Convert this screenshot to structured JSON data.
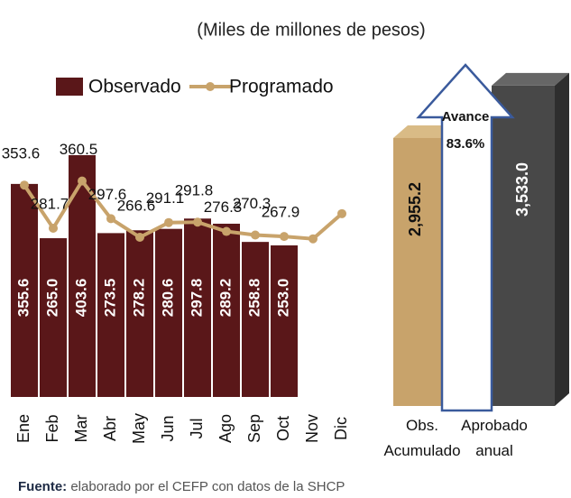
{
  "chart_data": [
    {
      "type": "bar-line",
      "subtitle": "(Miles de millones de pesos)",
      "categories": [
        "Ene",
        "Feb",
        "Mar",
        "Abr",
        "May",
        "Jun",
        "Jul",
        "Ago",
        "Sep",
        "Oct",
        "Nov",
        "Dic"
      ],
      "series": [
        {
          "name": "Observado",
          "color": "#5a1719",
          "kind": "bar",
          "values": [
            355.6,
            265.0,
            403.6,
            273.5,
            278.2,
            280.6,
            297.8,
            289.2,
            258.8,
            253.0,
            null,
            null
          ],
          "value_labels": [
            "355.6",
            "265.0",
            "403.6",
            "273.5",
            "278.2",
            "280.6",
            "297.8",
            "289.2",
            "258.8",
            "253.0",
            null,
            null
          ]
        },
        {
          "name": "Programado",
          "color": "#c8a36b",
          "kind": "line",
          "values": [
            353.6,
            281.7,
            360.5,
            297.6,
            266.6,
            291.1,
            291.8,
            276.3,
            270.3,
            267.9,
            264,
            306
          ],
          "value_labels": [
            "353.6",
            "281.7",
            "360.5",
            "297.6",
            "266.6",
            "291.1",
            "291.8",
            "276.3",
            "270.3",
            "267.9",
            null,
            null
          ]
        }
      ],
      "ylim": [
        0,
        430
      ]
    },
    {
      "type": "bar3d",
      "categories": [
        "Obs. Acumulado",
        "Aprobado anual"
      ],
      "values": [
        2955.2,
        3533.0
      ],
      "value_labels": [
        "2,955.2",
        "3,533.0"
      ],
      "colors": [
        "#c8a36b",
        "#484848"
      ],
      "ylim": [
        0,
        3600
      ],
      "annotation": {
        "title": "Avance",
        "value": 83.6,
        "label": "83.6%"
      }
    }
  ],
  "source": {
    "label": "Fuente:",
    "text": "elaborado por el CEFP con datos de la SHCP"
  }
}
